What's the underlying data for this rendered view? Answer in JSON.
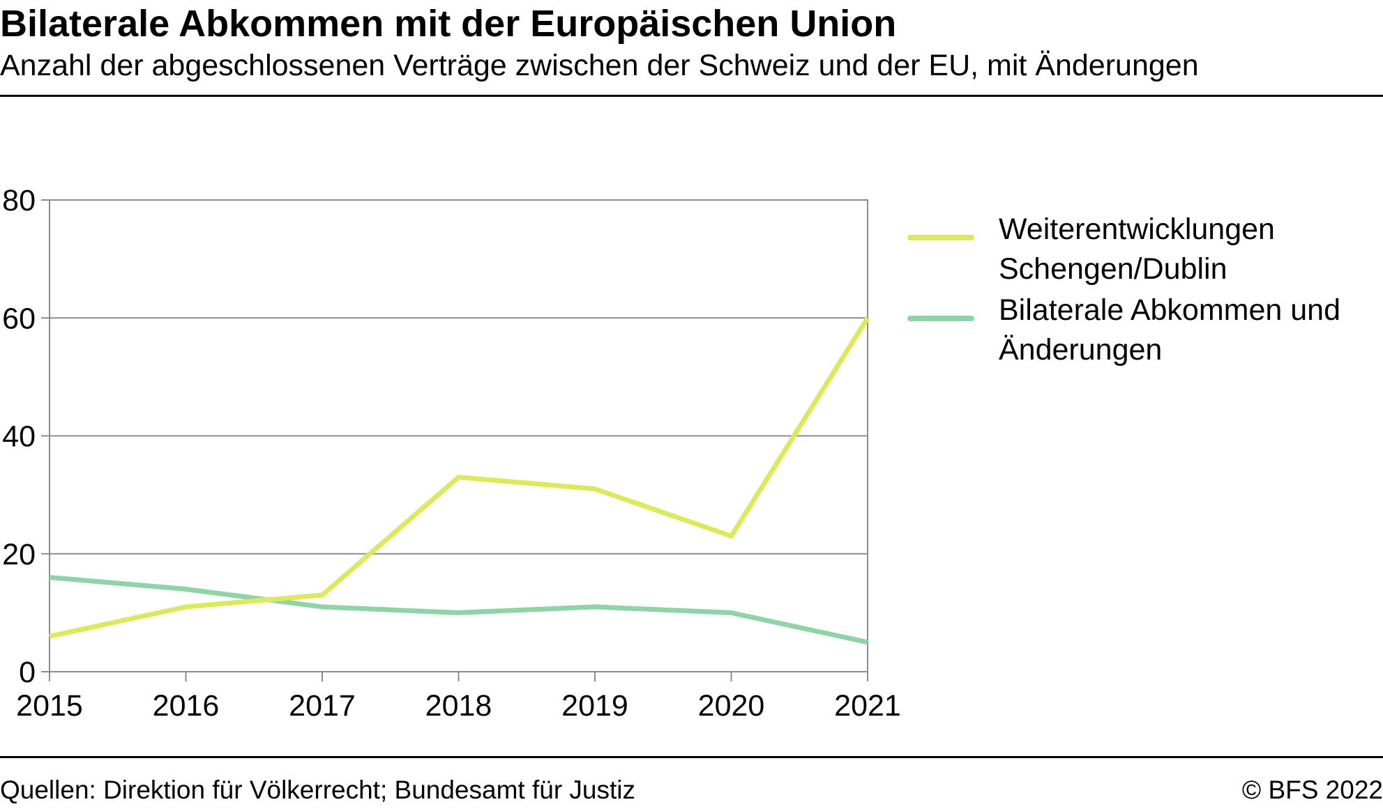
{
  "header": {
    "title": "Bilaterale Abkommen mit der Europäischen Union",
    "subtitle": "Anzahl der abgeschlossenen Verträge zwischen der Schweiz und der EU, mit Änderungen"
  },
  "footer": {
    "source": "Quellen: Direktion für Völkerrecht; Bundesamt für Justiz",
    "copyright": "© BFS 2022"
  },
  "chart_data": {
    "type": "line",
    "title": "Bilaterale Abkommen mit der Europäischen Union",
    "subtitle": "Anzahl der abgeschlossenen Verträge zwischen der Schweiz und der EU, mit Änderungen",
    "xlabel": "",
    "ylabel": "",
    "x": [
      2015,
      2016,
      2017,
      2018,
      2019,
      2020,
      2021
    ],
    "x_tick_labels": [
      "2015",
      "2016",
      "2017",
      "2018",
      "2019",
      "2020",
      "2021"
    ],
    "ylim": [
      0,
      80
    ],
    "y_ticks": [
      0,
      20,
      40,
      60,
      80
    ],
    "y_tick_labels": [
      "0",
      "20",
      "40",
      "60",
      "80"
    ],
    "grid": "horizontal",
    "legend_position": "right",
    "series": [
      {
        "name": "Weiterentwicklungen Schengen/Dublin",
        "legend_lines": [
          "Weiterentwicklungen",
          "Schengen/Dublin"
        ],
        "color": "#dce95c",
        "values": [
          6,
          11,
          13,
          33,
          31,
          23,
          60
        ]
      },
      {
        "name": "Bilaterale Abkommen und Änderungen",
        "legend_lines": [
          "Bilaterale Abkommen und",
          "Änderungen"
        ],
        "color": "#8fd4a6",
        "values": [
          16,
          14,
          11,
          10,
          11,
          10,
          5
        ]
      }
    ]
  }
}
